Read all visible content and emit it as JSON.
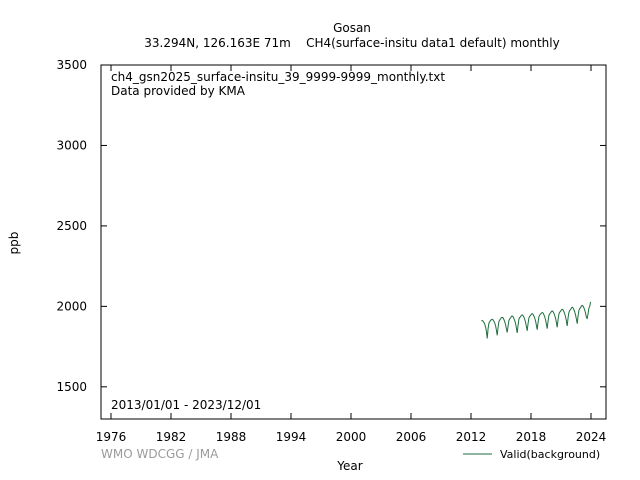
{
  "chart_data": {
    "type": "line",
    "title": "Gosan",
    "subtitle": "33.294N, 126.163E 71m    CH4(surface-insitu data1 default) monthly",
    "annotation_file": "ch4_gsn2025_surface-insitu_39_9999-9999_monthly.txt",
    "annotation_provider": "Data provided by KMA",
    "date_range": "2013/01/01 - 2023/12/01",
    "xlabel": "Year",
    "ylabel": "ppb",
    "xlim": [
      1975,
      2025.5
    ],
    "ylim": [
      1300,
      3500
    ],
    "x_ticks": [
      1976,
      1982,
      1988,
      1994,
      2000,
      2006,
      2012,
      2018,
      2024
    ],
    "y_ticks": [
      1500,
      2000,
      2500,
      3000,
      3500
    ],
    "grid": false,
    "legend_position": "bottom-right",
    "series": [
      {
        "name": "Valid(background)",
        "color": "#1e6e3c",
        "x": [
          2013.04,
          2013.12,
          2013.21,
          2013.29,
          2013.37,
          2013.46,
          2013.54,
          2013.62,
          2013.71,
          2013.79,
          2013.87,
          2013.96,
          2014.04,
          2014.12,
          2014.21,
          2014.29,
          2014.37,
          2014.46,
          2014.54,
          2014.62,
          2014.71,
          2014.79,
          2014.87,
          2014.96,
          2015.04,
          2015.12,
          2015.21,
          2015.29,
          2015.37,
          2015.46,
          2015.54,
          2015.62,
          2015.71,
          2015.79,
          2015.87,
          2015.96,
          2016.04,
          2016.12,
          2016.21,
          2016.29,
          2016.37,
          2016.46,
          2016.54,
          2016.62,
          2016.71,
          2016.79,
          2016.87,
          2016.96,
          2017.04,
          2017.12,
          2017.21,
          2017.29,
          2017.37,
          2017.46,
          2017.54,
          2017.62,
          2017.71,
          2017.79,
          2017.87,
          2017.96,
          2018.04,
          2018.12,
          2018.21,
          2018.29,
          2018.37,
          2018.46,
          2018.54,
          2018.62,
          2018.71,
          2018.79,
          2018.87,
          2018.96,
          2019.04,
          2019.12,
          2019.21,
          2019.29,
          2019.37,
          2019.46,
          2019.54,
          2019.62,
          2019.71,
          2019.79,
          2019.87,
          2019.96,
          2020.04,
          2020.12,
          2020.21,
          2020.29,
          2020.37,
          2020.46,
          2020.54,
          2020.62,
          2020.71,
          2020.79,
          2020.87,
          2020.96,
          2021.04,
          2021.12,
          2021.21,
          2021.29,
          2021.37,
          2021.46,
          2021.54,
          2021.62,
          2021.71,
          2021.79,
          2021.87,
          2021.96,
          2022.04,
          2022.12,
          2022.21,
          2022.29,
          2022.37,
          2022.46,
          2022.54,
          2022.62,
          2022.71,
          2022.79,
          2022.87,
          2022.96,
          2023.04,
          2023.12,
          2023.21,
          2023.29,
          2023.37,
          2023.46,
          2023.54,
          2023.62,
          2023.71,
          2023.79,
          2023.87,
          2023.96
        ],
        "y": [
          1910,
          1912,
          1908,
          1900,
          1890,
          1872,
          1845,
          1800,
          1862,
          1895,
          1905,
          1912,
          1918,
          1920,
          1915,
          1908,
          1898,
          1880,
          1852,
          1820,
          1870,
          1905,
          1915,
          1922,
          1930,
          1932,
          1928,
          1918,
          1905,
          1885,
          1860,
          1838,
          1880,
          1912,
          1922,
          1928,
          1938,
          1940,
          1935,
          1925,
          1912,
          1892,
          1865,
          1835,
          1885,
          1920,
          1930,
          1936,
          1945,
          1947,
          1942,
          1933,
          1920,
          1900,
          1875,
          1848,
          1895,
          1928,
          1938,
          1944,
          1952,
          1955,
          1950,
          1940,
          1928,
          1908,
          1882,
          1855,
          1902,
          1935,
          1946,
          1952,
          1958,
          1962,
          1958,
          1948,
          1935,
          1915,
          1890,
          1862,
          1910,
          1943,
          1954,
          1960,
          1968,
          1972,
          1967,
          1957,
          1944,
          1925,
          1900,
          1870,
          1920,
          1952,
          1963,
          1970,
          1978,
          1982,
          1977,
          1967,
          1954,
          1934,
          1908,
          1878,
          1930,
          1962,
          1974,
          1980,
          1990,
          1995,
          1990,
          1980,
          1966,
          1946,
          1920,
          1892,
          1942,
          1975,
          1986,
          1992,
          2002,
          2006,
          2001,
          1991,
          1977,
          1957,
          1930,
          1925,
          1955,
          1988,
          2000,
          2028
        ]
      }
    ]
  },
  "footer": {
    "credit": "WMO WDCGG / JMA"
  }
}
